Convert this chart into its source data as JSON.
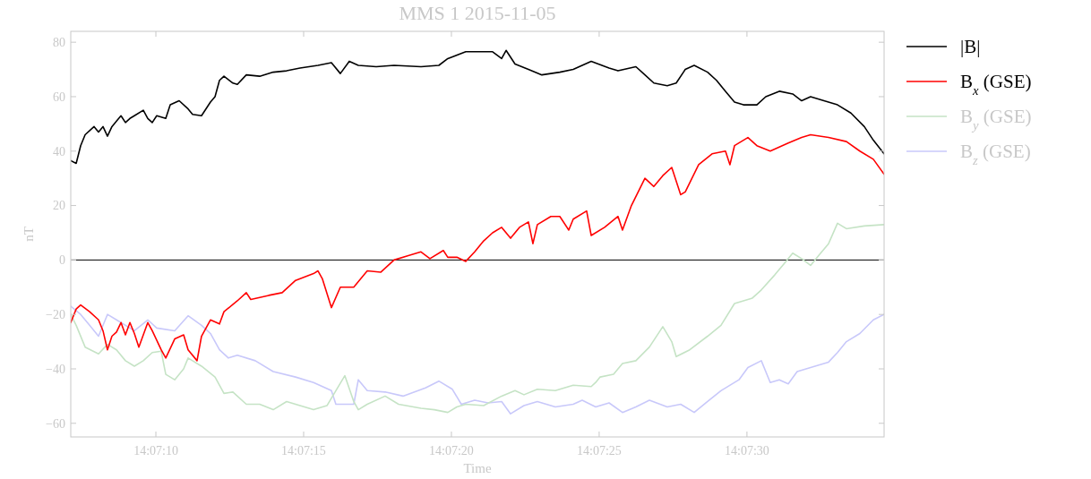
{
  "chart_data": {
    "type": "line",
    "title": "MMS 1 2015-11-05",
    "xlabel": "Time",
    "ylabel": "nT",
    "xlim": [
      14.118644,
      14.126289
    ],
    "ylim": [
      -65,
      84
    ],
    "xticks": [
      {
        "value": 14.119444,
        "label": "14:07:10"
      },
      {
        "value": 14.120833,
        "label": "14:07:15"
      },
      {
        "value": 14.122222,
        "label": "14:07:20"
      },
      {
        "value": 14.123611,
        "label": "14:07:25"
      },
      {
        "value": 14.125,
        "label": "14:07:30"
      }
    ],
    "yticks": [
      -60,
      -40,
      -20,
      0,
      20,
      40,
      60,
      80
    ],
    "legend": "right",
    "grid": false,
    "line_style": "solid",
    "marker": "none",
    "ref_lines": [
      {
        "axis": "y",
        "value": 0,
        "color": "#000000"
      }
    ],
    "series": [
      {
        "name": "|B|",
        "color": "#000000",
        "x": [
          14.118644,
          14.118695,
          14.118737,
          14.118779,
          14.118863,
          14.118905,
          14.118947,
          14.118989,
          14.119031,
          14.119074,
          14.119116,
          14.119158,
          14.1192,
          14.119242,
          14.119326,
          14.119368,
          14.11941,
          14.119452,
          14.119537,
          14.119579,
          14.119663,
          14.119747,
          14.119789,
          14.119873,
          14.119957,
          14.12,
          14.120042,
          14.120084,
          14.120168,
          14.12021,
          14.120294,
          14.12042,
          14.120547,
          14.120673,
          14.120799,
          14.120968,
          14.121094,
          14.121178,
          14.121262,
          14.121347,
          14.121515,
          14.121683,
          14.121936,
          14.122104,
          14.122188,
          14.122357,
          14.122609,
          14.122694,
          14.122736,
          14.12282,
          14.122946,
          14.123072,
          14.123241,
          14.123367,
          14.123536,
          14.123704,
          14.123788,
          14.123956,
          14.124041,
          14.124125,
          14.124251,
          14.124335,
          14.12442,
          14.124504,
          14.12463,
          14.124714,
          14.124798,
          14.124883,
          14.124967,
          14.125093,
          14.125177,
          14.125304,
          14.12543,
          14.125514,
          14.125598,
          14.125724,
          14.125851,
          14.125977,
          14.126103,
          14.126188,
          14.126289
        ],
        "values": [
          36.5,
          35.5,
          42,
          46,
          49,
          47,
          49,
          45.5,
          49,
          51,
          53,
          50.5,
          52,
          53,
          55,
          52,
          50.5,
          53,
          52,
          57,
          58.5,
          55.5,
          53.5,
          53,
          58,
          60,
          66,
          67.5,
          65,
          64.5,
          68,
          67.5,
          69,
          69.5,
          70.5,
          71.5,
          72.5,
          68.5,
          73,
          71.5,
          71,
          71.5,
          71,
          71.5,
          74,
          76.5,
          76.5,
          74,
          77,
          72,
          70,
          68,
          69,
          70,
          73,
          70.5,
          69.5,
          71,
          68,
          65,
          64,
          65,
          70,
          71.5,
          69,
          66,
          62,
          58,
          57,
          57,
          60,
          62,
          61,
          58.5,
          60,
          58.5,
          57,
          54,
          49,
          44,
          39
        ]
      },
      {
        "name": "B$_{x}$ (GSE)",
        "color": "#ff0000",
        "x": [
          14.118644,
          14.118695,
          14.118737,
          14.118821,
          14.118905,
          14.118947,
          14.118989,
          14.119031,
          14.119074,
          14.119116,
          14.119158,
          14.1192,
          14.119242,
          14.119284,
          14.119368,
          14.11941,
          14.119494,
          14.119537,
          14.119621,
          14.119705,
          14.119747,
          14.119831,
          14.119873,
          14.119957,
          14.120042,
          14.120084,
          14.12021,
          14.120294,
          14.120336,
          14.120505,
          14.120631,
          14.120757,
          14.120926,
          14.120968,
          14.12101,
          14.121094,
          14.121178,
          14.121304,
          14.121431,
          14.121557,
          14.121683,
          14.12181,
          14.121936,
          14.12202,
          14.122146,
          14.122188,
          14.122273,
          14.122357,
          14.122441,
          14.122525,
          14.122609,
          14.122694,
          14.122778,
          14.122862,
          14.122946,
          14.122988,
          14.12303,
          14.123157,
          14.123241,
          14.123325,
          14.123367,
          14.123493,
          14.123536,
          14.123662,
          14.123788,
          14.12383,
          14.123914,
          14.124041,
          14.124125,
          14.124209,
          14.124293,
          14.124377,
          14.12442,
          14.124546,
          14.124672,
          14.124798,
          14.12484,
          14.124883,
          14.125009,
          14.125093,
          14.125219,
          14.125388,
          14.125514,
          14.125598,
          14.125767,
          14.125935,
          14.126061,
          14.126188,
          14.126289
        ],
        "values": [
          -23,
          -18,
          -16.5,
          -19,
          -22,
          -26,
          -33,
          -28,
          -26.5,
          -23,
          -27.5,
          -23,
          -27,
          -32,
          -23,
          -26,
          -33,
          -36,
          -29,
          -27.5,
          -33,
          -37,
          -28,
          -22,
          -23.5,
          -19,
          -15,
          -12,
          -14.5,
          -13,
          -12,
          -7.5,
          -5,
          -4,
          -7,
          -17.5,
          -10,
          -10,
          -4,
          -4.5,
          0,
          1.5,
          3,
          0.5,
          3.5,
          1,
          1,
          -0.5,
          3,
          7,
          10,
          12,
          8,
          12,
          14,
          6,
          13,
          16,
          16,
          11,
          15,
          18,
          9,
          12,
          16,
          11,
          20,
          30,
          27,
          31,
          34,
          24,
          25,
          35,
          39,
          40,
          35,
          42,
          45,
          42,
          40,
          43,
          45,
          46,
          45,
          43.5,
          40,
          37,
          31.5
        ]
      },
      {
        "name": "B$_{y}$ (GSE)",
        "color": "#c5e3c5",
        "x": [
          14.118644,
          14.118695,
          14.118779,
          14.118905,
          14.118989,
          14.119074,
          14.119158,
          14.119242,
          14.119326,
          14.11941,
          14.119494,
          14.119537,
          14.119621,
          14.119705,
          14.119747,
          14.119873,
          14.12,
          14.120084,
          14.120168,
          14.120294,
          14.12042,
          14.120547,
          14.120673,
          14.120799,
          14.120926,
          14.121052,
          14.12122,
          14.121304,
          14.121347,
          14.121431,
          14.121599,
          14.121725,
          14.121936,
          14.122062,
          14.122188,
          14.122273,
          14.122357,
          14.122525,
          14.122694,
          14.12282,
          14.122904,
          14.12303,
          14.123199,
          14.123367,
          14.123536,
          14.123578,
          14.12362,
          14.123746,
          14.12383,
          14.123956,
          14.124083,
          14.124209,
          14.124293,
          14.124335,
          14.124462,
          14.12463,
          14.124756,
          14.124883,
          14.125051,
          14.125135,
          14.125261,
          14.125346,
          14.12543,
          14.125514,
          14.125598,
          14.125682,
          14.125767,
          14.125851,
          14.125935,
          14.126103,
          14.126289
        ],
        "values": [
          -20,
          -24,
          -32,
          -34.5,
          -31,
          -33,
          -37,
          -39,
          -37,
          -34,
          -33.5,
          -42,
          -44,
          -40,
          -36,
          -39,
          -43,
          -49,
          -48.5,
          -53,
          -53,
          -55,
          -52,
          -53.5,
          -55,
          -53.5,
          -42.5,
          -52,
          -55,
          -53,
          -50,
          -53,
          -54.5,
          -55,
          -56,
          -54,
          -53,
          -53.5,
          -50,
          -48,
          -49.5,
          -47.5,
          -48,
          -46,
          -46.5,
          -45,
          -43,
          -42,
          -38,
          -37,
          -32,
          -24.5,
          -30,
          -35.5,
          -33,
          -28,
          -24,
          -16,
          -14,
          -11,
          -5.5,
          -1.5,
          2.5,
          0.5,
          -2,
          2,
          6,
          13.5,
          11.5,
          12.5,
          13
        ]
      },
      {
        "name": "B$_{z}$ (GSE)",
        "color": "#c8c8fa",
        "x": [
          14.118644,
          14.118737,
          14.118821,
          14.118905,
          14.118989,
          14.119074,
          14.119242,
          14.119368,
          14.119452,
          14.119621,
          14.119747,
          14.119873,
          14.119957,
          14.120042,
          14.120126,
          14.12021,
          14.120378,
          14.120547,
          14.120757,
          14.120926,
          14.121094,
          14.121136,
          14.121304,
          14.121347,
          14.121431,
          14.121599,
          14.121767,
          14.121978,
          14.122104,
          14.122231,
          14.122315,
          14.122441,
          14.122567,
          14.122694,
          14.122778,
          14.122904,
          14.12303,
          14.123199,
          14.123367,
          14.123451,
          14.123578,
          14.123704,
          14.12383,
          14.123956,
          14.124083,
          14.124251,
          14.124377,
          14.124504,
          14.12463,
          14.124756,
          14.124925,
          14.125009,
          14.125135,
          14.125219,
          14.125304,
          14.125388,
          14.125472,
          14.125598,
          14.125767,
          14.125851,
          14.125935,
          14.126061,
          14.126188,
          14.126289
        ],
        "values": [
          -17,
          -20,
          -24,
          -28,
          -20,
          -22,
          -26,
          -22,
          -25,
          -26,
          -20.5,
          -24,
          -27,
          -33,
          -36,
          -35,
          -37,
          -41,
          -43,
          -45,
          -48,
          -53,
          -53,
          -44,
          -48,
          -48.5,
          -50,
          -47,
          -44.5,
          -47.5,
          -53,
          -51.5,
          -52.5,
          -52,
          -56.5,
          -53.5,
          -52,
          -54,
          -53,
          -51.5,
          -54,
          -52.5,
          -56,
          -54,
          -51.5,
          -54,
          -53,
          -56,
          -52,
          -48,
          -44,
          -39.5,
          -37,
          -45,
          -44,
          -45.5,
          -41,
          -39.5,
          -37.5,
          -34,
          -30,
          -27,
          -22,
          -20
        ]
      }
    ]
  }
}
